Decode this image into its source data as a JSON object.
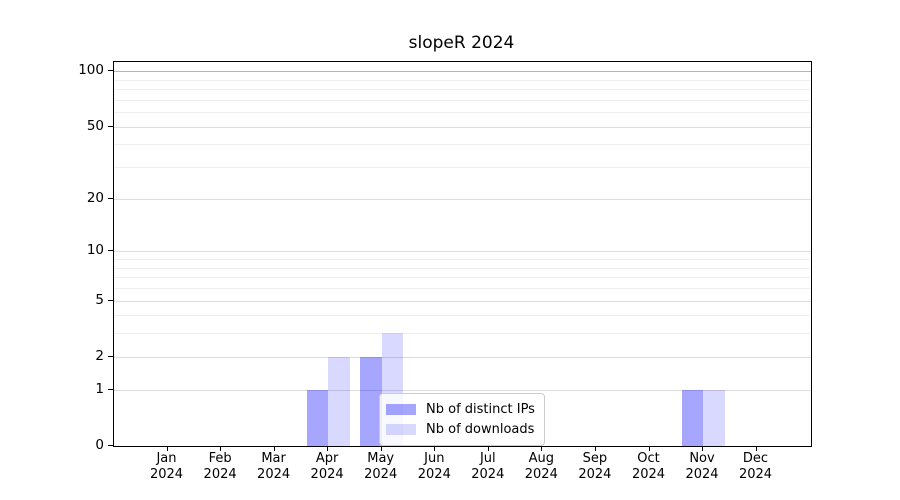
{
  "title": "slopeR 2024",
  "chart_data": {
    "type": "bar",
    "title": "slopeR 2024",
    "x_tick_months": [
      "Jan",
      "Feb",
      "Mar",
      "Apr",
      "May",
      "Jun",
      "Jul",
      "Aug",
      "Sep",
      "Oct",
      "Nov",
      "Dec"
    ],
    "x_tick_year": "2024",
    "series": [
      {
        "name": "Nb of distinct IPs",
        "color": "rgba(0,0,255,0.35)",
        "values": [
          0,
          0,
          0,
          1,
          2,
          0,
          0,
          0,
          0,
          0,
          1,
          0
        ]
      },
      {
        "name": "Nb of downloads",
        "color": "rgba(0,0,255,0.15)",
        "values": [
          0,
          0,
          0,
          2,
          3,
          0,
          0,
          0,
          0,
          0,
          1,
          0
        ]
      }
    ],
    "y_axis": {
      "scale": "log1p",
      "tick_labels": [
        0,
        1,
        2,
        5,
        10,
        20,
        50,
        100
      ],
      "minor_gridlines": [
        3,
        4,
        6,
        7,
        8,
        9,
        30,
        40,
        60,
        70,
        80,
        90
      ],
      "max_value": 112,
      "min_value": 0
    },
    "legend": {
      "position": "inside-bottom-center",
      "entries": [
        "Nb of distinct IPs",
        "Nb of downloads"
      ]
    },
    "grid": "horizontal-only"
  },
  "colors": {
    "bar_distinct_ips": "rgba(0,0,255,0.35)",
    "bar_downloads": "rgba(0,0,255,0.15)",
    "gridline_top": "#b5b5b5",
    "gridline_major": "#dcdcdc",
    "gridline_minor": "#efefef",
    "spine": "#000000",
    "background": "#ffffff",
    "legend_border": "#cccccc"
  }
}
